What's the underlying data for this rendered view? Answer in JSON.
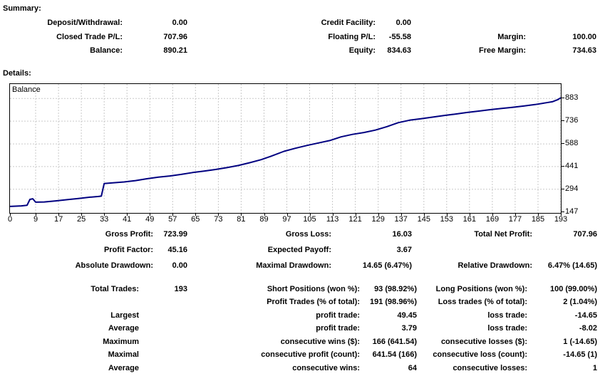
{
  "summary": {
    "heading": "Summary:",
    "rows": [
      [
        "Deposit/Withdrawal:",
        "0.00",
        "Credit Facility:",
        "0.00",
        "",
        ""
      ],
      [
        "Closed Trade P/L:",
        "707.96",
        "Floating P/L:",
        "-55.58",
        "Margin:",
        "100.00"
      ],
      [
        "Balance:",
        "890.21",
        "Equity:",
        "834.63",
        "Free Margin:",
        "734.63"
      ]
    ]
  },
  "details": {
    "heading": "Details:",
    "rows_a": [
      [
        "Gross Profit:",
        "723.99",
        "Gross Loss:",
        "16.03",
        "Total Net Profit:",
        "707.96"
      ],
      [
        "Profit Factor:",
        "45.16",
        "Expected Payoff:",
        "3.67",
        "",
        ""
      ],
      [
        "Absolute Drawdown:",
        "0.00",
        "Maximal Drawdown:",
        "14.65 (6.47%)",
        "Relative Drawdown:",
        "6.47% (14.65)"
      ]
    ],
    "rows_b": [
      [
        "Total Trades:",
        "193",
        "Short Positions (won %):",
        "93 (98.92%)",
        "Long Positions (won %):",
        "100 (99.00%)"
      ],
      [
        "",
        "",
        "Profit Trades (% of total):",
        "191 (98.96%)",
        "Loss trades (% of total):",
        "2 (1.04%)"
      ],
      [
        "Largest",
        "",
        "profit trade:",
        "49.45",
        "loss trade:",
        "-14.65"
      ],
      [
        "Average",
        "",
        "profit trade:",
        "3.79",
        "loss trade:",
        "-8.02"
      ],
      [
        "Maximum",
        "",
        "consecutive wins ($):",
        "166 (641.54)",
        "consecutive losses ($):",
        "1 (-14.65)"
      ],
      [
        "Maximal",
        "",
        "consecutive profit (count):",
        "641.54 (166)",
        "consecutive loss (count):",
        "-14.65 (1)"
      ],
      [
        "Average",
        "",
        "consecutive wins:",
        "64",
        "consecutive losses:",
        "1"
      ]
    ]
  },
  "chart_data": {
    "type": "line",
    "title": "Balance",
    "xlabel": "",
    "ylabel": "",
    "x_range": [
      0,
      193
    ],
    "y_range": [
      140,
      977
    ],
    "x_ticks": [
      0,
      9,
      17,
      25,
      33,
      41,
      49,
      57,
      65,
      73,
      81,
      89,
      97,
      105,
      113,
      121,
      129,
      137,
      145,
      153,
      161,
      169,
      177,
      185,
      193
    ],
    "y_ticks": [
      883,
      736,
      588,
      441,
      294,
      147
    ],
    "grid": "dashed",
    "legend": "none",
    "series": [
      {
        "name": "Balance",
        "points": [
          [
            0,
            182
          ],
          [
            4,
            186
          ],
          [
            6,
            190
          ],
          [
            7,
            228
          ],
          [
            8,
            232
          ],
          [
            9,
            210
          ],
          [
            12,
            211
          ],
          [
            16,
            218
          ],
          [
            20,
            226
          ],
          [
            24,
            234
          ],
          [
            28,
            242
          ],
          [
            31,
            247
          ],
          [
            32,
            249
          ],
          [
            33,
            331
          ],
          [
            36,
            335
          ],
          [
            40,
            341
          ],
          [
            44,
            350
          ],
          [
            48,
            362
          ],
          [
            52,
            372
          ],
          [
            56,
            380
          ],
          [
            60,
            390
          ],
          [
            64,
            402
          ],
          [
            68,
            412
          ],
          [
            72,
            422
          ],
          [
            76,
            434
          ],
          [
            80,
            448
          ],
          [
            84,
            466
          ],
          [
            88,
            486
          ],
          [
            92,
            512
          ],
          [
            96,
            540
          ],
          [
            100,
            560
          ],
          [
            104,
            578
          ],
          [
            108,
            594
          ],
          [
            112,
            610
          ],
          [
            116,
            634
          ],
          [
            120,
            650
          ],
          [
            124,
            662
          ],
          [
            128,
            678
          ],
          [
            132,
            700
          ],
          [
            136,
            726
          ],
          [
            140,
            742
          ],
          [
            144,
            752
          ],
          [
            148,
            762
          ],
          [
            152,
            772
          ],
          [
            156,
            782
          ],
          [
            160,
            792
          ],
          [
            164,
            801
          ],
          [
            168,
            810
          ],
          [
            172,
            818
          ],
          [
            176,
            826
          ],
          [
            180,
            834
          ],
          [
            184,
            844
          ],
          [
            188,
            856
          ],
          [
            190,
            862
          ],
          [
            192,
            876
          ],
          [
            193,
            888
          ]
        ]
      }
    ]
  },
  "colors": {
    "line": "#000080",
    "grid": "#c9c9c9",
    "chart_border": "#000000",
    "text": "#000000",
    "background": "#ffffff"
  }
}
